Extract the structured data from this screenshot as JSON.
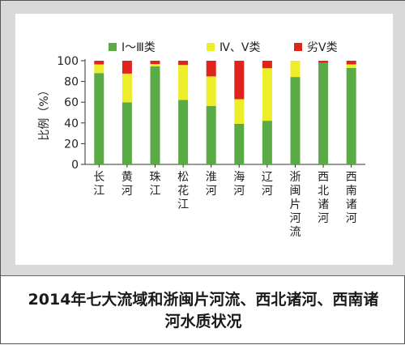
{
  "caption": "2014年七大流域和浙闽片河流、西北诸河、西南诸河水质状况",
  "chart_data": {
    "type": "bar",
    "stacked": true,
    "title": "",
    "xlabel": "",
    "ylabel": "比例（%）",
    "ylim": [
      0,
      100
    ],
    "yticks": [
      0,
      20,
      40,
      60,
      80,
      100
    ],
    "grid": false,
    "legend_position": "top",
    "categories": [
      "长江",
      "黄河",
      "珠江",
      "松花江",
      "淮河",
      "海河",
      "辽河",
      "浙闽片河流",
      "西北诸河",
      "西南诸河"
    ],
    "series": [
      {
        "name": "Ⅰ～Ⅲ类",
        "color": "#5aab46",
        "values": [
          88.1,
          59.8,
          94.5,
          62.3,
          56.4,
          39.1,
          42.1,
          84.3,
          97.9,
          93.0
        ]
      },
      {
        "name": "Ⅳ、Ⅴ类",
        "color": "#eded2a",
        "values": [
          8.4,
          27.8,
          2.3,
          33.6,
          28.5,
          23.8,
          50.7,
          15.7,
          0.0,
          3.5
        ]
      },
      {
        "name": "劣Ⅴ类",
        "color": "#e0241c",
        "values": [
          3.5,
          12.4,
          3.2,
          4.1,
          15.1,
          37.1,
          7.2,
          0.0,
          2.1,
          3.5
        ]
      }
    ]
  }
}
